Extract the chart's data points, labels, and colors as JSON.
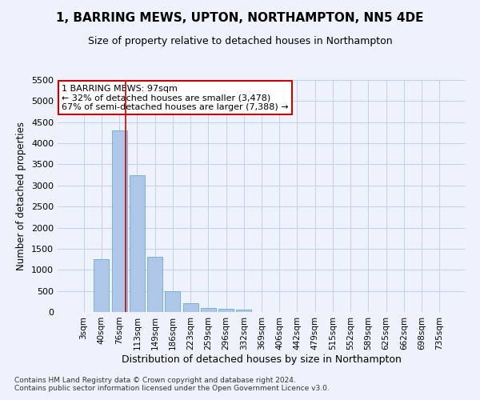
{
  "title": "1, BARRING MEWS, UPTON, NORTHAMPTON, NN5 4DE",
  "subtitle": "Size of property relative to detached houses in Northampton",
  "xlabel": "Distribution of detached houses by size in Northampton",
  "ylabel": "Number of detached properties",
  "categories": [
    "3sqm",
    "40sqm",
    "76sqm",
    "113sqm",
    "149sqm",
    "186sqm",
    "223sqm",
    "259sqm",
    "296sqm",
    "332sqm",
    "369sqm",
    "406sqm",
    "442sqm",
    "479sqm",
    "515sqm",
    "552sqm",
    "589sqm",
    "625sqm",
    "662sqm",
    "698sqm",
    "735sqm"
  ],
  "values": [
    0,
    1250,
    4300,
    3250,
    1300,
    490,
    200,
    100,
    70,
    50,
    0,
    0,
    0,
    0,
    0,
    0,
    0,
    0,
    0,
    0,
    0
  ],
  "bar_color": "#aec6e8",
  "bar_edge_color": "#6aaad4",
  "vline_color": "#cc0000",
  "vline_x": 2.35,
  "annotation_text": "1 BARRING MEWS: 97sqm\n← 32% of detached houses are smaller (3,478)\n67% of semi-detached houses are larger (7,388) →",
  "annotation_box_facecolor": "#ffffff",
  "annotation_box_edgecolor": "#cc0000",
  "grid_color": "#c8cce8",
  "background_color": "#eef2fc",
  "footer_text": "Contains HM Land Registry data © Crown copyright and database right 2024.\nContains public sector information licensed under the Open Government Licence v3.0.",
  "ylim": [
    0,
    5500
  ],
  "yticks": [
    0,
    500,
    1000,
    1500,
    2000,
    2500,
    3000,
    3500,
    4000,
    4500,
    5000,
    5500
  ]
}
